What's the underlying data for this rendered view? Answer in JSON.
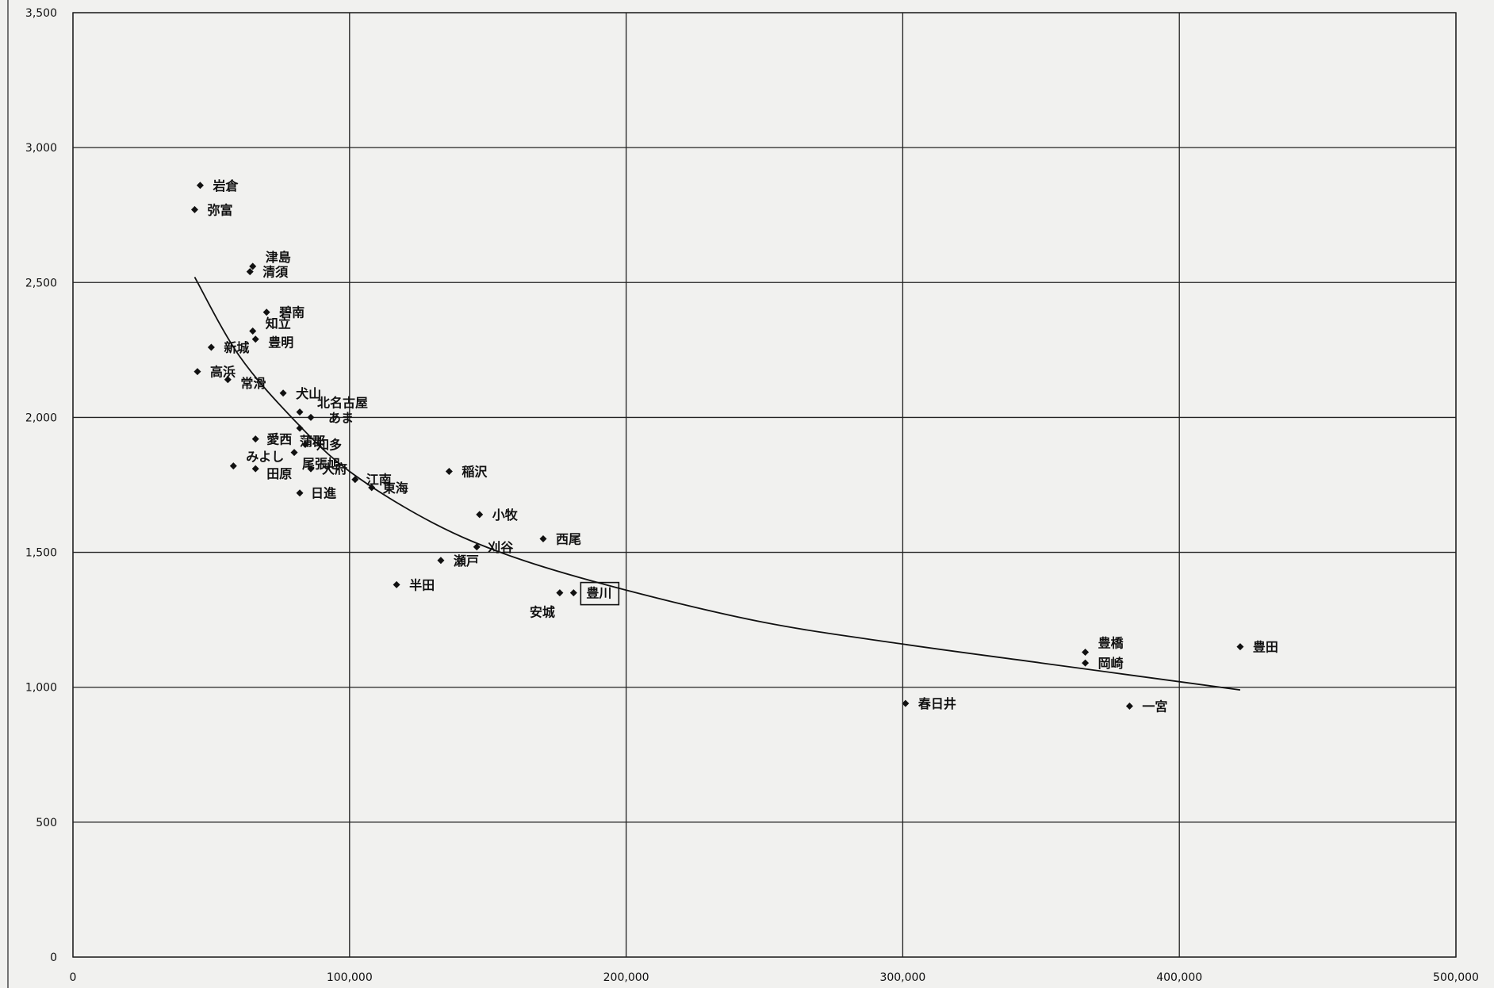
{
  "chart_data": {
    "type": "scatter",
    "title": "",
    "xlabel": "",
    "ylabel": "",
    "xlim": [
      0,
      500000
    ],
    "ylim": [
      0,
      3500
    ],
    "x_ticks": [
      0,
      100000,
      200000,
      300000,
      400000,
      500000
    ],
    "y_ticks": [
      0,
      500,
      1000,
      1500,
      2000,
      2500,
      3000,
      3500
    ],
    "x_tick_labels": [
      "0",
      "100,000",
      "200,000",
      "300,000",
      "400,000",
      "500,000"
    ],
    "y_tick_labels": [
      "0",
      "500",
      "1,000",
      "1,500",
      "2,000",
      "2,500",
      "3,000",
      "3,500"
    ],
    "grid": true,
    "highlighted_label": "豊川",
    "points": [
      {
        "label": "岩倉",
        "x": 46000,
        "y": 2860
      },
      {
        "label": "弥富",
        "x": 44000,
        "y": 2770
      },
      {
        "label": "津島",
        "x": 65000,
        "y": 2560
      },
      {
        "label": "清須",
        "x": 64000,
        "y": 2540
      },
      {
        "label": "碧南",
        "x": 70000,
        "y": 2390
      },
      {
        "label": "知立",
        "x": 65000,
        "y": 2320
      },
      {
        "label": "豊明",
        "x": 66000,
        "y": 2290
      },
      {
        "label": "新城",
        "x": 50000,
        "y": 2260
      },
      {
        "label": "高浜",
        "x": 45000,
        "y": 2170
      },
      {
        "label": "常滑",
        "x": 56000,
        "y": 2140
      },
      {
        "label": "犬山",
        "x": 76000,
        "y": 2090
      },
      {
        "label": "北名古屋",
        "x": 82000,
        "y": 2020
      },
      {
        "label": "あま",
        "x": 86000,
        "y": 2000
      },
      {
        "label": "蒲郡",
        "x": 82000,
        "y": 1960
      },
      {
        "label": "愛西",
        "x": 66000,
        "y": 1920
      },
      {
        "label": "知多",
        "x": 84000,
        "y": 1900
      },
      {
        "label": "尾張旭",
        "x": 80000,
        "y": 1870
      },
      {
        "label": "みよし",
        "x": 58000,
        "y": 1820
      },
      {
        "label": "田原",
        "x": 66000,
        "y": 1810
      },
      {
        "label": "大府",
        "x": 86000,
        "y": 1810
      },
      {
        "label": "江南",
        "x": 102000,
        "y": 1770
      },
      {
        "label": "東海",
        "x": 108000,
        "y": 1740
      },
      {
        "label": "日進",
        "x": 82000,
        "y": 1720
      },
      {
        "label": "稲沢",
        "x": 136000,
        "y": 1800
      },
      {
        "label": "小牧",
        "x": 147000,
        "y": 1640
      },
      {
        "label": "西尾",
        "x": 170000,
        "y": 1550
      },
      {
        "label": "刈谷",
        "x": 146000,
        "y": 1520
      },
      {
        "label": "瀬戸",
        "x": 133000,
        "y": 1470
      },
      {
        "label": "半田",
        "x": 117000,
        "y": 1380
      },
      {
        "label": "豊川",
        "x": 181000,
        "y": 1350
      },
      {
        "label": "安城",
        "x": 176000,
        "y": 1350
      },
      {
        "label": "豊橋",
        "x": 366000,
        "y": 1130
      },
      {
        "label": "岡崎",
        "x": 366000,
        "y": 1090
      },
      {
        "label": "豊田",
        "x": 422000,
        "y": 1150
      },
      {
        "label": "春日井",
        "x": 301000,
        "y": 940
      },
      {
        "label": "一宮",
        "x": 382000,
        "y": 930
      }
    ],
    "trendline": {
      "type": "power",
      "points": [
        [
          44000,
          2520
        ],
        [
          60000,
          2230
        ],
        [
          80000,
          1990
        ],
        [
          100000,
          1800
        ],
        [
          130000,
          1610
        ],
        [
          160000,
          1480
        ],
        [
          200000,
          1360
        ],
        [
          250000,
          1240
        ],
        [
          300000,
          1160
        ],
        [
          350000,
          1090
        ],
        [
          422000,
          990
        ]
      ]
    }
  }
}
